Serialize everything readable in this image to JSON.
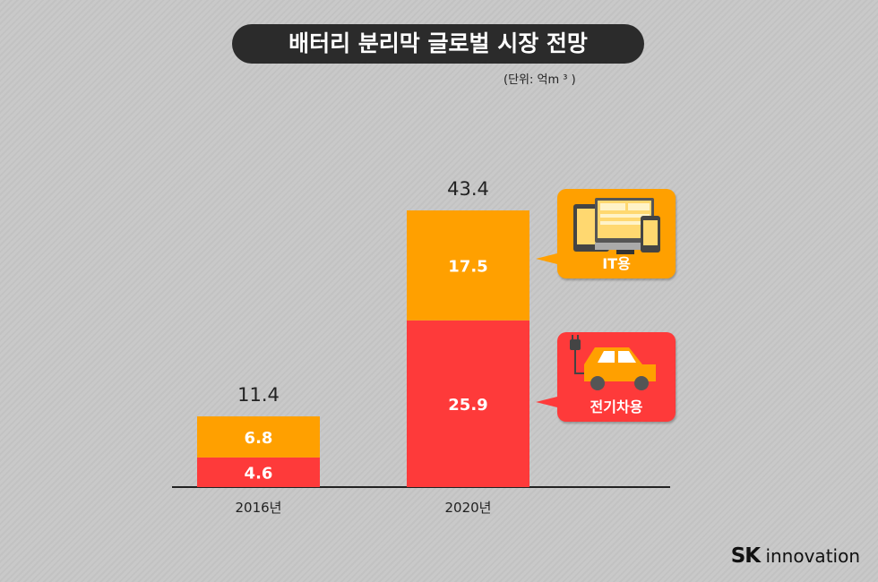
{
  "title": "배터리 분리막 글로벌 시장 전망",
  "unit": "(단위: 억m ³ )",
  "colors": {
    "it": "#ffa000",
    "ev": "#fe3a3a",
    "axis": "#222222",
    "title_bg": "#2b2b2b"
  },
  "chart_data": {
    "type": "bar",
    "stacked": true,
    "title": "배터리 분리막 글로벌 시장 전망",
    "categories": [
      "2016년",
      "2020년"
    ],
    "series": [
      {
        "name": "전기차용",
        "values": [
          4.6,
          25.9
        ],
        "color": "#fe3a3a"
      },
      {
        "name": "IT용",
        "values": [
          6.8,
          17.5
        ],
        "color": "#ffa000"
      }
    ],
    "totals": [
      "11.4",
      "43.4"
    ],
    "segment_labels": [
      [
        "4.6",
        "25.9"
      ],
      [
        "6.8",
        "17.5"
      ]
    ],
    "ylim": [
      0,
      43.4
    ],
    "grid": false,
    "legend_placement": "right"
  },
  "legend": [
    {
      "label": "IT용",
      "icon": "devices-icon"
    },
    {
      "label": "전기차용",
      "icon": "electric-car-icon"
    }
  ],
  "brand": {
    "sk": "SK",
    "innovation": "innovation"
  }
}
